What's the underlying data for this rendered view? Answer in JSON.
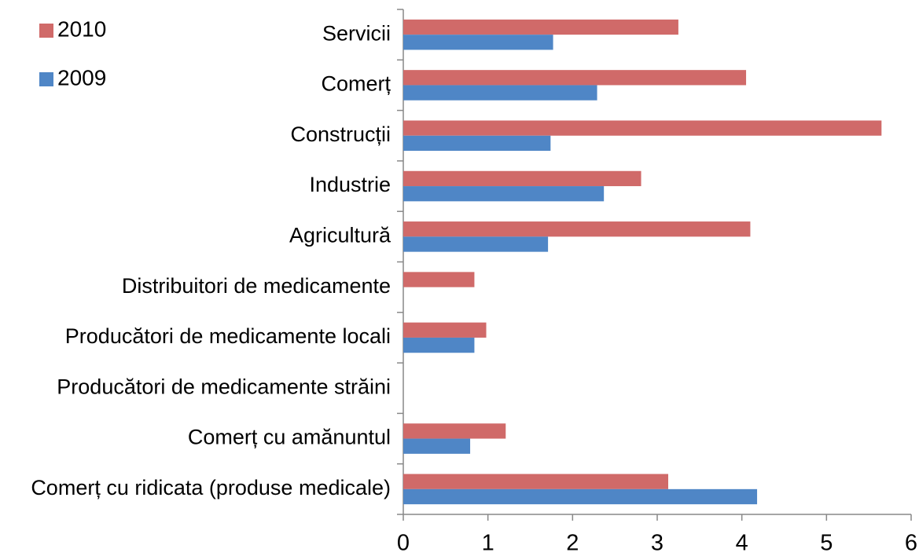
{
  "chart_data": {
    "type": "hbar",
    "categories": [
      "Servicii",
      "Comerț",
      "Construcții",
      "Industrie",
      "Agricultură",
      "Distribuitori de medicamente",
      "Producători de medicamente locali",
      "Producători de medicamente străini",
      "Comerț cu amănuntul",
      "Comerț cu ridicata (produse medicale)"
    ],
    "series": [
      {
        "name": "2010",
        "color": "#d06a69",
        "values": [
          3.25,
          4.05,
          5.65,
          2.81,
          4.1,
          0.84,
          0.98,
          null,
          1.21,
          3.13
        ]
      },
      {
        "name": "2009",
        "color": "#4f86c6",
        "values": [
          1.77,
          2.29,
          1.74,
          2.37,
          1.71,
          null,
          0.84,
          null,
          0.79,
          4.18
        ]
      }
    ],
    "xlim": [
      0,
      6
    ],
    "xticks": [
      0,
      1,
      2,
      3,
      4,
      5,
      6
    ],
    "grid": false,
    "legend": "top-left"
  }
}
